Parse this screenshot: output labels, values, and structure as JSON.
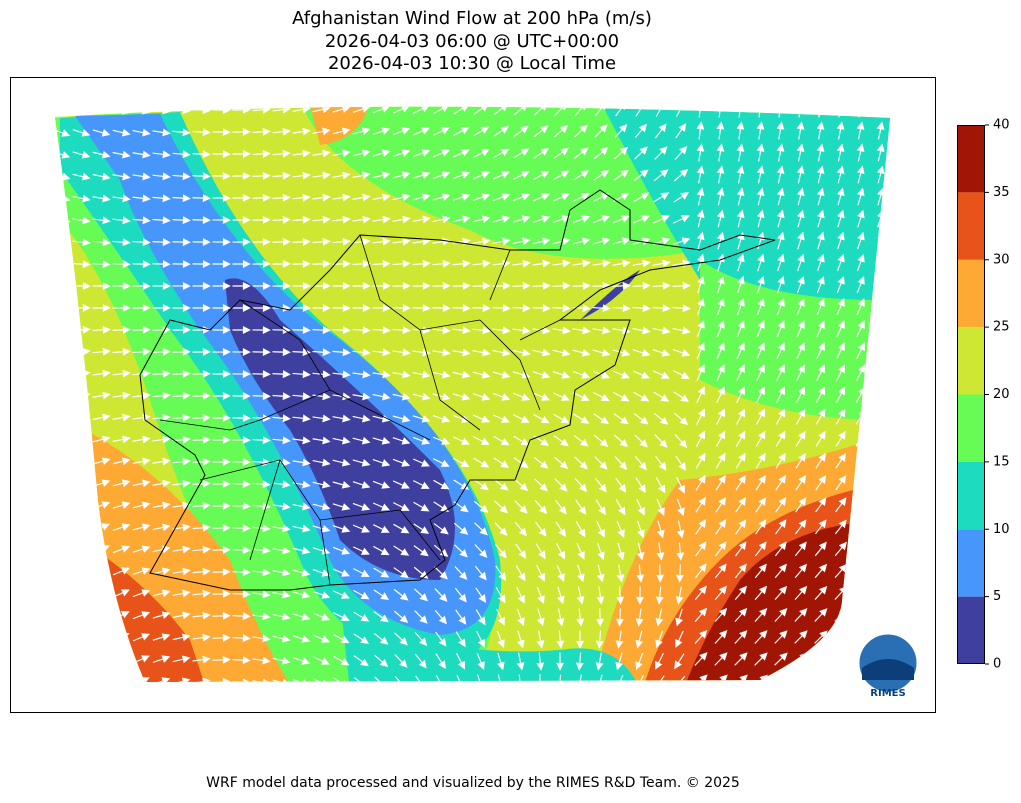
{
  "title": [
    "Afghanistan Wind Flow at 200 hPa (m/s)",
    "2026-04-03 06:00 @ UTC+00:00",
    "2026-04-03 10:30 @ Local Time"
  ],
  "colorbar": {
    "ticks": [
      0,
      5,
      10,
      15,
      20,
      25,
      30,
      35,
      40
    ],
    "colors": [
      "#3f3f9f",
      "#4696fc",
      "#1cdbbe",
      "#67fb55",
      "#cde733",
      "#fea934",
      "#e8531a",
      "#a11505"
    ]
  },
  "logo": "RIMES",
  "footer": "WRF model data processed and visualized by the RIMES R&D Team. © 2025"
}
